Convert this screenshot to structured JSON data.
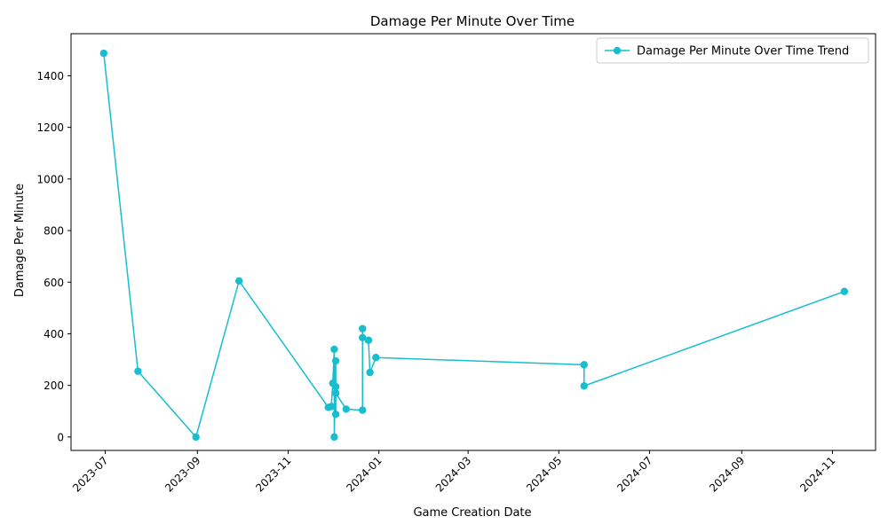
{
  "chart_data": {
    "type": "line",
    "title": "Damage Per Minute Over Time",
    "xlabel": "Game Creation Date",
    "ylabel": "Damage Per Minute",
    "x_ticks": [
      "2023-07-01",
      "2023-09-01",
      "2023-11-01",
      "2024-01-01",
      "2024-03-01",
      "2024-05-01",
      "2024-07-01",
      "2024-09-01",
      "2024-11-01"
    ],
    "y_ticks": [
      0,
      200,
      400,
      600,
      800,
      1000,
      1200,
      1400
    ],
    "ylim": [
      -52,
      1563
    ],
    "xlim": [
      "2023-06-08",
      "2024-11-30"
    ],
    "grid": false,
    "legend_position": "top-right",
    "series": [
      {
        "name": "Damage Per Minute Over Time Trend",
        "color": "#17becf",
        "marker": "circle",
        "points": [
          {
            "x": "2023-06-30",
            "y": 1487
          },
          {
            "x": "2023-07-23",
            "y": 255
          },
          {
            "x": "2023-08-31",
            "y": 0
          },
          {
            "x": "2023-09-29",
            "y": 605
          },
          {
            "x": "2023-11-28",
            "y": 115
          },
          {
            "x": "2023-11-30",
            "y": 118
          },
          {
            "x": "2023-12-01",
            "y": 208
          },
          {
            "x": "2023-12-02",
            "y": 340
          },
          {
            "x": "2023-12-02",
            "y": 0
          },
          {
            "x": "2023-12-03",
            "y": 295
          },
          {
            "x": "2023-12-03",
            "y": 88
          },
          {
            "x": "2023-12-03",
            "y": 195
          },
          {
            "x": "2023-12-03",
            "y": 170
          },
          {
            "x": "2023-12-10",
            "y": 108
          },
          {
            "x": "2023-12-21",
            "y": 104
          },
          {
            "x": "2023-12-21",
            "y": 420
          },
          {
            "x": "2023-12-21",
            "y": 385
          },
          {
            "x": "2023-12-25",
            "y": 375
          },
          {
            "x": "2023-12-26",
            "y": 250
          },
          {
            "x": "2023-12-30",
            "y": 308
          },
          {
            "x": "2024-05-18",
            "y": 280
          },
          {
            "x": "2024-05-18",
            "y": 198
          },
          {
            "x": "2024-11-09",
            "y": 564
          }
        ]
      }
    ]
  }
}
